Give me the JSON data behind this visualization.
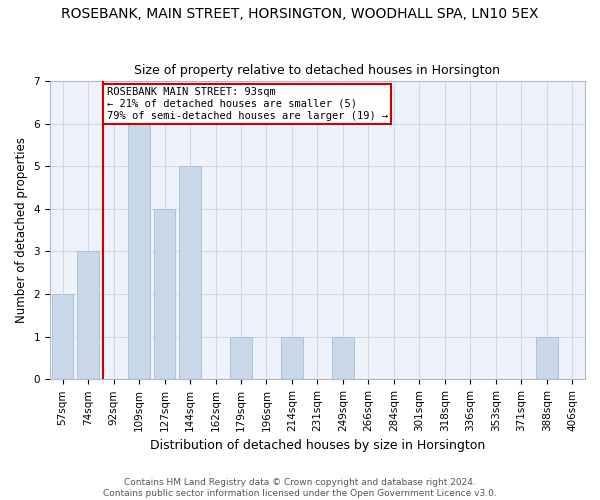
{
  "title": "ROSEBANK, MAIN STREET, HORSINGTON, WOODHALL SPA, LN10 5EX",
  "subtitle": "Size of property relative to detached houses in Horsington",
  "xlabel": "Distribution of detached houses by size in Horsington",
  "ylabel": "Number of detached properties",
  "categories": [
    "57sqm",
    "74sqm",
    "92sqm",
    "109sqm",
    "127sqm",
    "144sqm",
    "162sqm",
    "179sqm",
    "196sqm",
    "214sqm",
    "231sqm",
    "249sqm",
    "266sqm",
    "284sqm",
    "301sqm",
    "318sqm",
    "336sqm",
    "353sqm",
    "371sqm",
    "388sqm",
    "406sqm"
  ],
  "values": [
    2,
    3,
    0,
    6,
    4,
    5,
    0,
    1,
    0,
    1,
    0,
    1,
    0,
    0,
    0,
    0,
    0,
    0,
    0,
    1,
    0
  ],
  "bar_color": "#c8d8e8",
  "bar_edge_color": "#a0b8d0",
  "subject_line_index": 2,
  "subject_line_color": "#cc0000",
  "annotation_text": "ROSEBANK MAIN STREET: 93sqm\n← 21% of detached houses are smaller (5)\n79% of semi-detached houses are larger (19) →",
  "annotation_box_color": "#cc0000",
  "ylim": [
    0,
    7
  ],
  "yticks": [
    0,
    1,
    2,
    3,
    4,
    5,
    6,
    7
  ],
  "grid_color": "#d0d8e8",
  "background_color": "#eef2fa",
  "footer_line1": "Contains HM Land Registry data © Crown copyright and database right 2024.",
  "footer_line2": "Contains public sector information licensed under the Open Government Licence v3.0.",
  "title_fontsize": 10,
  "subtitle_fontsize": 9,
  "xlabel_fontsize": 9,
  "ylabel_fontsize": 8.5,
  "tick_fontsize": 7.5,
  "footer_fontsize": 6.5
}
